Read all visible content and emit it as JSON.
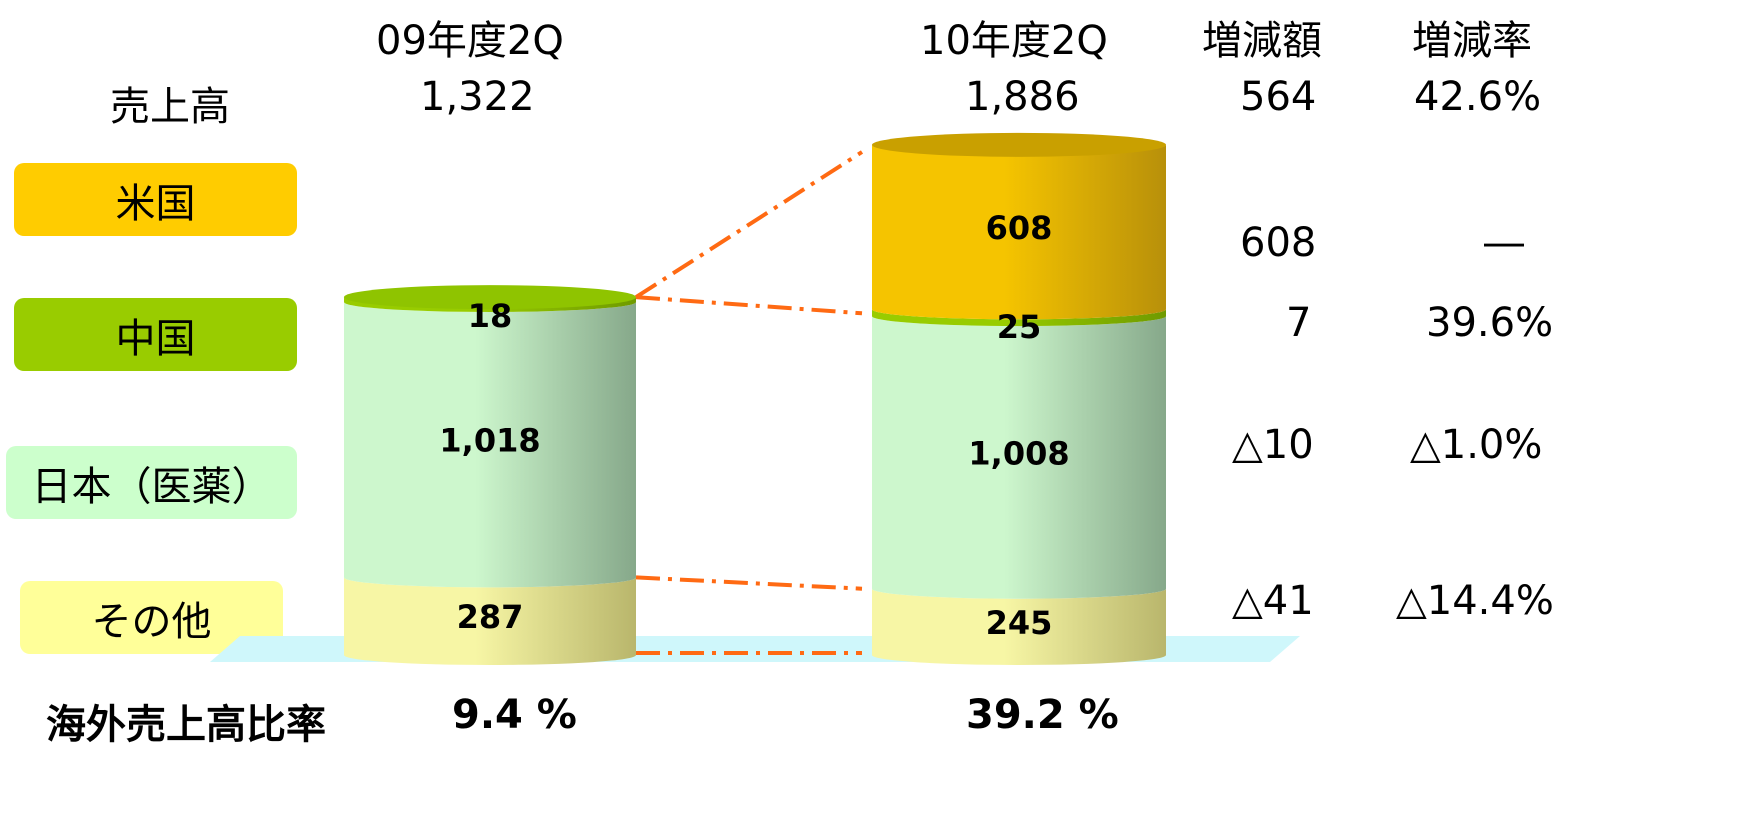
{
  "headers": {
    "year1": "09年度2Q",
    "year2": "10年度2Q",
    "diff": "増減額",
    "rate": "増減率"
  },
  "sales": {
    "label": "売上高",
    "year1": "1,322",
    "year2": "1,886",
    "diff": "564",
    "rate": "42.6%"
  },
  "legend": {
    "us": "米国",
    "china": "中国",
    "japan": "日本（医薬）",
    "other": "その他"
  },
  "changes": {
    "us": {
      "diff": "608",
      "rate": "―"
    },
    "china": {
      "diff": "7",
      "rate": "39.6%"
    },
    "japan": {
      "diff": "△10",
      "rate": "△1.0%"
    },
    "other": {
      "diff": "△41",
      "rate": "△14.4%"
    }
  },
  "overseas": {
    "label": "海外売上高比率",
    "year1": "9.4 %",
    "year2": "39.2 %"
  },
  "colors": {
    "us": "#f2c200",
    "china": "#8fc400",
    "japan": "#c6efc6",
    "other": "#eef2a6",
    "connector": "#ff6a13",
    "floor": "#cff7fb"
  },
  "chart_data": {
    "type": "bar",
    "stacked": true,
    "categories": [
      "09年度2Q",
      "10年度2Q"
    ],
    "series": [
      {
        "name": "その他",
        "values": [
          287,
          245
        ],
        "labels": [
          "287",
          "245"
        ]
      },
      {
        "name": "日本（医薬）",
        "values": [
          1018,
          1008
        ],
        "labels": [
          "1,018",
          "1,008"
        ]
      },
      {
        "name": "中国",
        "values": [
          18,
          25
        ],
        "labels": [
          "18",
          "25"
        ]
      },
      {
        "name": "米国",
        "values": [
          0,
          608
        ],
        "labels": [
          "",
          "608"
        ]
      }
    ],
    "totals": [
      "1,322",
      "1,886"
    ]
  }
}
